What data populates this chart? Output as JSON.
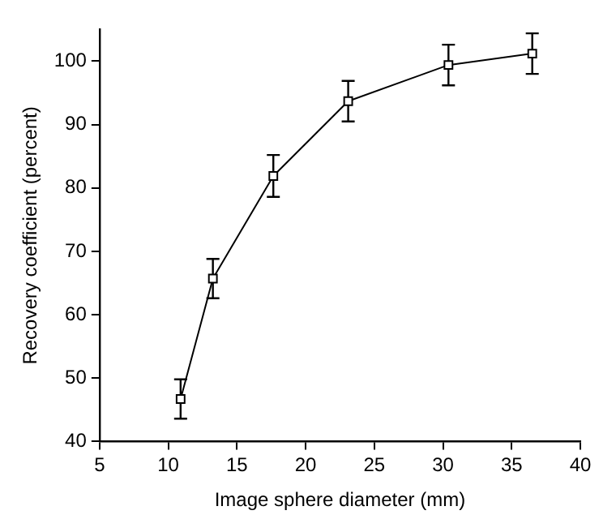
{
  "chart_data": {
    "type": "line",
    "xlabel": "Image sphere diameter (mm)",
    "ylabel": "Recovery coefficient (percent)",
    "x": [
      10.9,
      13.25,
      17.65,
      23.1,
      30.4,
      36.5
    ],
    "series": [
      {
        "color": "#000000",
        "values": [
          46.7,
          65.7,
          81.9,
          93.7,
          99.4,
          101.2
        ],
        "errors": [
          3.1,
          3.1,
          3.3,
          3.2,
          3.2,
          3.2
        ]
      }
    ],
    "xlim": [
      5,
      40
    ],
    "xticks": [
      5,
      10,
      15,
      20,
      25,
      30,
      35,
      40
    ],
    "ylim": [
      40,
      105
    ],
    "yticks": [
      40,
      50,
      60,
      70,
      80,
      90,
      100
    ],
    "marker": "square",
    "line_style": "solid",
    "grid": false,
    "legend": false
  }
}
